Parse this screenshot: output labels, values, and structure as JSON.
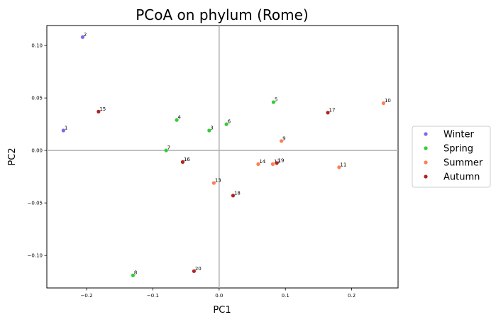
{
  "chart_data": {
    "type": "scatter",
    "title": "PCoA on phylum (Rome)",
    "xlabel": "PC1",
    "ylabel": "PC2",
    "xlim": [
      -0.26,
      0.27
    ],
    "ylim": [
      -0.131,
      0.119
    ],
    "xticks": [
      -0.2,
      -0.1,
      0.0,
      0.1,
      0.2
    ],
    "xtick_labels": [
      "−0.2",
      "−0.1",
      "0.0",
      "0.1",
      "0.2"
    ],
    "yticks": [
      -0.1,
      -0.05,
      0.0,
      0.05,
      0.1
    ],
    "ytick_labels": [
      "−0.10",
      "−0.05",
      "0.00",
      "0.05",
      "0.10"
    ],
    "grid": false,
    "reference_lines": {
      "x": 0,
      "y": 0
    },
    "legend_position": "outside-right",
    "series": [
      {
        "name": "Winter",
        "color": "#7b68ee",
        "points": [
          {
            "label": "1",
            "x": -0.235,
            "y": 0.019
          },
          {
            "label": "2",
            "x": -0.206,
            "y": 0.108
          }
        ]
      },
      {
        "name": "Spring",
        "color": "#32cd32",
        "points": [
          {
            "label": "3",
            "x": -0.015,
            "y": 0.019
          },
          {
            "label": "4",
            "x": -0.064,
            "y": 0.029
          },
          {
            "label": "5",
            "x": 0.082,
            "y": 0.046
          },
          {
            "label": "6",
            "x": 0.011,
            "y": 0.025
          },
          {
            "label": "7",
            "x": -0.08,
            "y": 0.0
          },
          {
            "label": "8",
            "x": -0.13,
            "y": -0.119
          }
        ]
      },
      {
        "name": "Summer",
        "color": "#ff7f50",
        "points": [
          {
            "label": "9",
            "x": 0.094,
            "y": 0.009
          },
          {
            "label": "10",
            "x": 0.248,
            "y": 0.045
          },
          {
            "label": "11",
            "x": 0.181,
            "y": -0.016
          },
          {
            "label": "12",
            "x": 0.081,
            "y": -0.013
          },
          {
            "label": "13",
            "x": -0.008,
            "y": -0.031
          },
          {
            "label": "14",
            "x": 0.059,
            "y": -0.013
          }
        ]
      },
      {
        "name": "Autumn",
        "color": "#b22222",
        "points": [
          {
            "label": "15",
            "x": -0.182,
            "y": 0.037
          },
          {
            "label": "16",
            "x": -0.055,
            "y": -0.011
          },
          {
            "label": "17",
            "x": 0.164,
            "y": 0.036
          },
          {
            "label": "18",
            "x": 0.021,
            "y": -0.043
          },
          {
            "label": "19",
            "x": 0.087,
            "y": -0.012
          },
          {
            "label": "20",
            "x": -0.038,
            "y": -0.115
          }
        ]
      }
    ]
  }
}
